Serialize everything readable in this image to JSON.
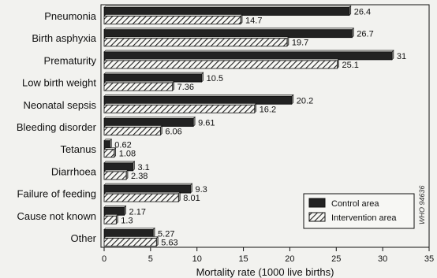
{
  "chart_data": {
    "type": "bar",
    "orientation": "horizontal",
    "categories": [
      "Pneumonia",
      "Birth asphyxia",
      "Prematurity",
      "Low birth weight",
      "Neonatal sepsis",
      "Bleeding disorder",
      "Tetanus",
      "Diarrhoea",
      "Failure of feeding",
      "Cause not known",
      "Other"
    ],
    "series": [
      {
        "name": "Control area",
        "color": "#222222",
        "pattern": "solid",
        "values": [
          26.4,
          26.7,
          31,
          10.5,
          20.2,
          9.61,
          0.62,
          3.1,
          9.3,
          2.17,
          5.27
        ],
        "labels": [
          "26.4",
          "26.7",
          "31",
          "10.5",
          "20.2",
          "9.61",
          "0.62",
          "3.1",
          "9.3",
          "2.17",
          "5.27"
        ]
      },
      {
        "name": "Intervention area",
        "color": "#222222",
        "pattern": "hatched",
        "values": [
          14.7,
          19.7,
          25.1,
          7.36,
          16.2,
          6.06,
          1.08,
          2.38,
          8.01,
          1.3,
          5.63
        ],
        "labels": [
          "14.7",
          "19.7",
          "25.1",
          "7.36",
          "16.2",
          "6.06",
          "1.08",
          "2.38",
          "8.01",
          "1.3",
          "5.63"
        ]
      }
    ],
    "xlabel": "Mortality rate (1000 live births)",
    "ylabel": "",
    "xlim": [
      0,
      35
    ],
    "xticks": [
      0,
      5,
      10,
      15,
      20,
      25,
      30,
      35
    ],
    "grid": false,
    "legend_position": "bottom-right",
    "watermark": "WHO 94636"
  }
}
